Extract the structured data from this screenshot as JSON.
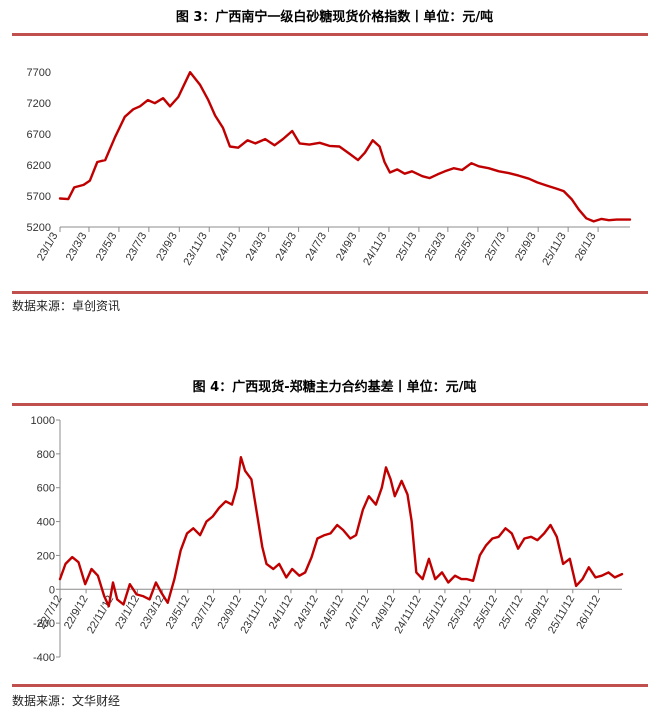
{
  "figure1": {
    "title": "图 3：广西南宁一级白砂糖现货价格指数丨单位：元/吨",
    "source": "数据来源：卓创资讯"
  },
  "figure2": {
    "title": "图 4：广西现货-郑糖主力合约基差丨单位：元/吨",
    "source": "数据来源：文华财经"
  },
  "chart_data": [
    {
      "type": "line",
      "title": "图 3：广西南宁一级白砂糖现货价格指数丨单位：元/吨",
      "line_color": "#c00000",
      "ylim": [
        5200,
        7800
      ],
      "yticks": [
        5200,
        5700,
        6200,
        6700,
        7200,
        7700
      ],
      "xlim": [
        "2023-01-03",
        "2026-03-09"
      ],
      "xticks": [
        "23/1/3",
        "23/3/3",
        "23/5/3",
        "23/7/3",
        "23/9/3",
        "23/11/3",
        "24/1/3",
        "24/3/3",
        "24/5/3",
        "24/7/3",
        "24/9/3",
        "24/11/3",
        "25/1/3",
        "25/3/3",
        "25/5/3",
        "25/7/3",
        "25/9/3",
        "25/11/3",
        "26/1/3"
      ],
      "grid": false,
      "series": [
        {
          "x": [
            "2023-01-03",
            "2023-01-20",
            "2023-02-01",
            "2023-02-20",
            "2023-03-05",
            "2023-03-20",
            "2023-04-05",
            "2023-04-25",
            "2023-05-15",
            "2023-06-01",
            "2023-06-15",
            "2023-07-01",
            "2023-07-15",
            "2023-08-01",
            "2023-08-15",
            "2023-09-01",
            "2023-09-10",
            "2023-09-25",
            "2023-10-15",
            "2023-11-01",
            "2023-11-15",
            "2023-12-01",
            "2023-12-15",
            "2024-01-01",
            "2024-01-20",
            "2024-02-05",
            "2024-02-25",
            "2024-03-15",
            "2024-04-01",
            "2024-04-20",
            "2024-05-05",
            "2024-05-25",
            "2024-06-15",
            "2024-07-05",
            "2024-07-25",
            "2024-08-15",
            "2024-09-01",
            "2024-09-15",
            "2024-10-01",
            "2024-10-15",
            "2024-10-25",
            "2024-11-05",
            "2024-11-20",
            "2024-12-05",
            "2024-12-20",
            "2025-01-10",
            "2025-01-25",
            "2025-02-10",
            "2025-02-25",
            "2025-03-15",
            "2025-04-01",
            "2025-04-20",
            "2025-05-05",
            "2025-05-25",
            "2025-06-15",
            "2025-07-05",
            "2025-07-25",
            "2025-08-15",
            "2025-09-01",
            "2025-09-20",
            "2025-10-10",
            "2025-10-25",
            "2025-11-10",
            "2025-11-25",
            "2025-12-10",
            "2025-12-25",
            "2026-01-10",
            "2026-01-25",
            "2026-02-10",
            "2026-02-25",
            "2026-03-09"
          ],
          "y": [
            5660,
            5650,
            5840,
            5880,
            5950,
            6250,
            6280,
            6650,
            6980,
            7100,
            7150,
            7250,
            7200,
            7280,
            7150,
            7300,
            7450,
            7700,
            7500,
            7250,
            7000,
            6800,
            6500,
            6480,
            6600,
            6550,
            6620,
            6520,
            6620,
            6750,
            6550,
            6530,
            6560,
            6510,
            6500,
            6380,
            6280,
            6400,
            6600,
            6500,
            6250,
            6080,
            6130,
            6060,
            6100,
            6020,
            5990,
            6050,
            6100,
            6150,
            6120,
            6230,
            6180,
            6150,
            6100,
            6070,
            6030,
            5980,
            5920,
            5870,
            5820,
            5780,
            5650,
            5480,
            5340,
            5290,
            5330,
            5310,
            5320,
            5320,
            5320
          ]
        }
      ]
    },
    {
      "type": "line",
      "title": "图 4：广西现货-郑糖主力合约基差丨单位：元/吨",
      "line_color": "#c00000",
      "ylim": [
        -400,
        1000
      ],
      "yticks": [
        -400,
        -200,
        0,
        200,
        400,
        600,
        800,
        1000
      ],
      "xlim": [
        "2022-07-12",
        "2026-03-09"
      ],
      "xticks": [
        "22/7/12",
        "22/9/12",
        "22/11/12",
        "23/1/12",
        "23/3/12",
        "23/5/12",
        "23/7/12",
        "23/9/12",
        "23/11/12",
        "24/1/12",
        "24/3/12",
        "24/5/12",
        "24/7/12",
        "24/9/12",
        "24/11/12",
        "25/1/12",
        "25/3/12",
        "25/5/12",
        "25/7/12",
        "25/9/12",
        "25/11/12",
        "26/1/12"
      ],
      "grid": false,
      "series": [
        {
          "x": [
            "2022-07-12",
            "2022-07-25",
            "2022-08-10",
            "2022-08-25",
            "2022-09-10",
            "2022-09-25",
            "2022-10-10",
            "2022-10-25",
            "2022-11-05",
            "2022-11-15",
            "2022-11-25",
            "2022-12-10",
            "2022-12-25",
            "2023-01-10",
            "2023-01-25",
            "2023-02-10",
            "2023-02-25",
            "2023-03-10",
            "2023-03-25",
            "2023-04-10",
            "2023-04-25",
            "2023-05-10",
            "2023-05-25",
            "2023-06-10",
            "2023-06-25",
            "2023-07-10",
            "2023-07-25",
            "2023-08-10",
            "2023-08-25",
            "2023-09-05",
            "2023-09-15",
            "2023-09-25",
            "2023-10-10",
            "2023-10-25",
            "2023-11-05",
            "2023-11-15",
            "2023-12-01",
            "2023-12-15",
            "2024-01-01",
            "2024-01-15",
            "2024-02-01",
            "2024-02-15",
            "2024-03-01",
            "2024-03-15",
            "2024-04-01",
            "2024-04-15",
            "2024-05-01",
            "2024-05-15",
            "2024-06-01",
            "2024-06-15",
            "2024-07-01",
            "2024-07-15",
            "2024-08-01",
            "2024-08-15",
            "2024-08-25",
            "2024-09-05",
            "2024-09-15",
            "2024-10-01",
            "2024-10-15",
            "2024-10-25",
            "2024-11-05",
            "2024-11-20",
            "2024-12-05",
            "2024-12-20",
            "2025-01-05",
            "2025-01-20",
            "2025-02-05",
            "2025-02-20",
            "2025-03-05",
            "2025-03-20",
            "2025-04-05",
            "2025-04-20",
            "2025-05-05",
            "2025-05-20",
            "2025-06-05",
            "2025-06-20",
            "2025-07-05",
            "2025-07-20",
            "2025-08-05",
            "2025-08-20",
            "2025-09-05",
            "2025-09-20",
            "2025-10-05",
            "2025-10-20",
            "2025-11-05",
            "2025-11-20",
            "2025-12-05",
            "2025-12-20",
            "2026-01-05",
            "2026-01-20",
            "2026-02-05",
            "2026-02-20",
            "2026-03-09"
          ],
          "y": [
            60,
            150,
            190,
            160,
            30,
            120,
            80,
            -40,
            -100,
            40,
            -60,
            -90,
            30,
            -30,
            -40,
            -60,
            40,
            -20,
            -80,
            60,
            230,
            330,
            360,
            320,
            400,
            430,
            480,
            520,
            500,
            600,
            780,
            700,
            650,
            420,
            250,
            150,
            120,
            150,
            70,
            120,
            80,
            100,
            190,
            300,
            320,
            330,
            380,
            350,
            300,
            320,
            470,
            550,
            500,
            600,
            720,
            650,
            550,
            640,
            560,
            400,
            100,
            60,
            180,
            60,
            100,
            40,
            80,
            60,
            60,
            50,
            200,
            260,
            300,
            310,
            360,
            330,
            240,
            300,
            310,
            290,
            330,
            380,
            310,
            150,
            180,
            20,
            60,
            130,
            70,
            80,
            100,
            70,
            90
          ]
        }
      ]
    }
  ]
}
